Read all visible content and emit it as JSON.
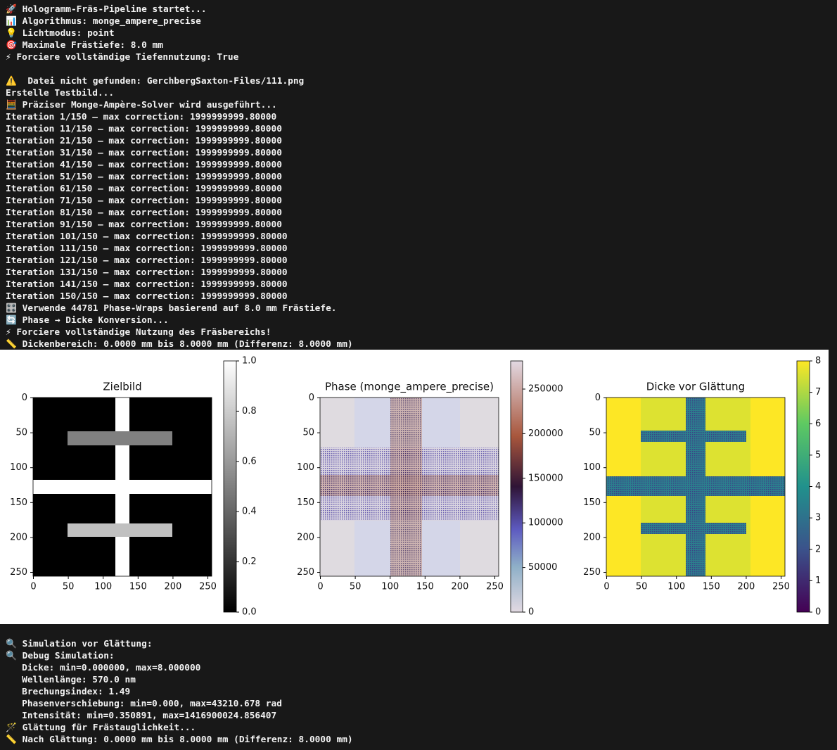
{
  "log_top": [
    [
      "🚀 Hologramm-Fräs-Pipeline startet...",
      "📊 Algorithmus: monge_ampere_precise",
      "💡 Lichtmodus: point",
      "🎯 Maximale Frästiefe: 8.0 mm",
      "⚡ Forciere vollständige Tiefennutzung: True"
    ],
    [
      "⚠️  Datei nicht gefunden: GerchbergSaxton-Files/111.png",
      "Erstelle Testbild...",
      "🧮 Präziser Monge-Ampère-Solver wird ausgeführt...",
      "Iteration 1/150 – max correction: 1999999999.80000",
      "Iteration 11/150 – max correction: 1999999999.80000",
      "Iteration 21/150 – max correction: 1999999999.80000",
      "Iteration 31/150 – max correction: 1999999999.80000",
      "Iteration 41/150 – max correction: 1999999999.80000",
      "Iteration 51/150 – max correction: 1999999999.80000",
      "Iteration 61/150 – max correction: 1999999999.80000",
      "Iteration 71/150 – max correction: 1999999999.80000",
      "Iteration 81/150 – max correction: 1999999999.80000",
      "Iteration 91/150 – max correction: 1999999999.80000",
      "Iteration 101/150 – max correction: 1999999999.80000",
      "Iteration 111/150 – max correction: 1999999999.80000",
      "Iteration 121/150 – max correction: 1999999999.80000",
      "Iteration 131/150 – max correction: 1999999999.80000",
      "Iteration 141/150 – max correction: 1999999999.80000",
      "Iteration 150/150 – max correction: 1999999999.80000",
      "🎛️ Verwende 44781 Phase-Wraps basierend auf 8.0 mm Frästiefe.",
      "🔄 Phase → Dicke Konversion...",
      "⚡ Forciere vollständige Nutzung des Fräsbereichs!",
      "📏 Dickenbereich: 0.0000 mm bis 8.0000 mm (Differenz: 8.0000 mm)"
    ]
  ],
  "figure": {
    "panels": [
      {
        "title": "Zielbild",
        "xticks": [
          "0",
          "50",
          "100",
          "150",
          "200",
          "250"
        ],
        "yticks": [
          "0",
          "50",
          "100",
          "150",
          "200",
          "250"
        ],
        "colorbar_ticks": [
          "0.0",
          "0.2",
          "0.4",
          "0.6",
          "0.8",
          "1.0"
        ]
      },
      {
        "title": "Phase (monge_ampere_precise)",
        "xticks": [
          "0",
          "50",
          "100",
          "150",
          "200",
          "250"
        ],
        "yticks": [
          "0",
          "50",
          "100",
          "150",
          "200",
          "250"
        ],
        "colorbar_ticks": [
          "0",
          "50000",
          "100000",
          "150000",
          "200000",
          "250000"
        ]
      },
      {
        "title": "Dicke vor Glättung",
        "xticks": [
          "0",
          "50",
          "100",
          "150",
          "200",
          "250"
        ],
        "yticks": [
          "0",
          "50",
          "100",
          "150",
          "200",
          "250"
        ],
        "colorbar_ticks": [
          "0",
          "1",
          "2",
          "3",
          "4",
          "5",
          "6",
          "7",
          "8"
        ]
      }
    ]
  },
  "log_bottom": [
    "🔍 Simulation vor Glättung:",
    "🔍 Debug Simulation:",
    "   Dicke: min=0.000000, max=8.000000",
    "   Wellenlänge: 570.0 nm",
    "   Brechungsindex: 1.49",
    "   Phasenverschiebung: min=0.000, max=43210.678 rad",
    "   Intensität: min=0.350891, max=1416900024.856407",
    "🪄 Glättung für Frästauglichkeit...",
    "📏 Nach Glättung: 0.0000 mm bis 8.0000 mm (Differenz: 8.0000 mm)"
  ]
}
